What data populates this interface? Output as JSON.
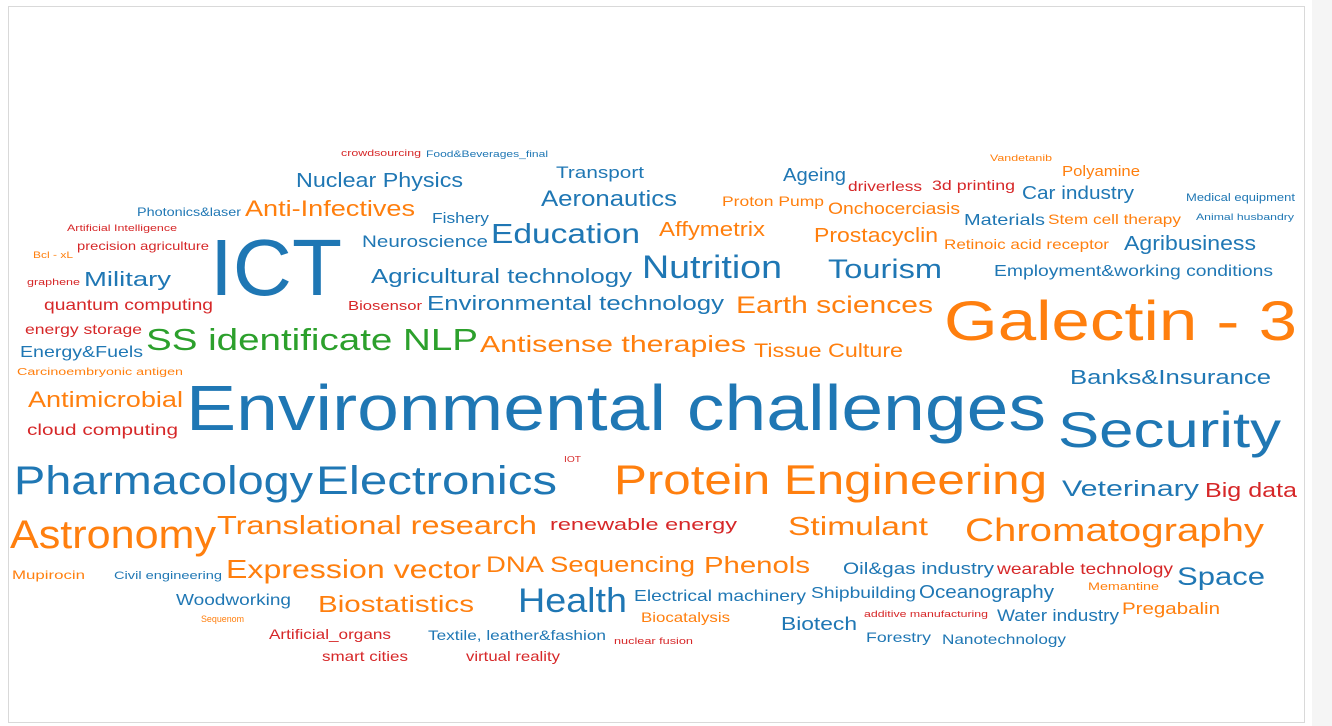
{
  "chart_data": {
    "type": "wordcloud",
    "words": [
      {
        "text": "crowdsourcing",
        "color": "#d62728"
      },
      {
        "text": "Food&Beverages_final",
        "color": "#1f77b4"
      },
      {
        "text": "Transport",
        "color": "#1f77b4"
      },
      {
        "text": "Nuclear Physics",
        "color": "#1f77b4"
      },
      {
        "text": "Ageing",
        "color": "#1f77b4"
      },
      {
        "text": "driverless",
        "color": "#d62728"
      },
      {
        "text": "3d printing",
        "color": "#d62728"
      },
      {
        "text": "Vandetanib",
        "color": "#ff7f0e"
      },
      {
        "text": "Polyamine",
        "color": "#ff7f0e"
      },
      {
        "text": "Car industry",
        "color": "#1f77b4"
      },
      {
        "text": "Aeronautics",
        "color": "#1f77b4"
      },
      {
        "text": "Proton Pump",
        "color": "#ff7f0e"
      },
      {
        "text": "Onchocerciasis",
        "color": "#ff7f0e"
      },
      {
        "text": "Medical equipment",
        "color": "#1f77b4"
      },
      {
        "text": "Photonics&laser",
        "color": "#1f77b4"
      },
      {
        "text": "Anti-Infectives",
        "color": "#ff7f0e"
      },
      {
        "text": "Fishery",
        "color": "#1f77b4"
      },
      {
        "text": "Materials",
        "color": "#1f77b4"
      },
      {
        "text": "Stem cell therapy",
        "color": "#ff7f0e"
      },
      {
        "text": "Animal husbandry",
        "color": "#1f77b4"
      },
      {
        "text": "Artificial Intelligence",
        "color": "#d62728"
      },
      {
        "text": "Education",
        "color": "#1f77b4"
      },
      {
        "text": "Affymetrix",
        "color": "#ff7f0e"
      },
      {
        "text": "Prostacyclin",
        "color": "#ff7f0e"
      },
      {
        "text": "Neuroscience",
        "color": "#1f77b4"
      },
      {
        "text": "precision agriculture",
        "color": "#d62728"
      },
      {
        "text": "Retinoic acid receptor",
        "color": "#ff7f0e"
      },
      {
        "text": "Agribusiness",
        "color": "#1f77b4"
      },
      {
        "text": "Bcl - xL",
        "color": "#ff7f0e"
      },
      {
        "text": "ICT",
        "color": "#1f77b4"
      },
      {
        "text": "Nutrition",
        "color": "#1f77b4"
      },
      {
        "text": "Tourism",
        "color": "#1f77b4"
      },
      {
        "text": "Agricultural technology",
        "color": "#1f77b4"
      },
      {
        "text": "Employment&working conditions",
        "color": "#1f77b4"
      },
      {
        "text": "graphene",
        "color": "#d62728"
      },
      {
        "text": "Military",
        "color": "#1f77b4"
      },
      {
        "text": "quantum computing",
        "color": "#d62728"
      },
      {
        "text": "Biosensor",
        "color": "#d62728"
      },
      {
        "text": "Environmental technology",
        "color": "#1f77b4"
      },
      {
        "text": "Earth sciences",
        "color": "#ff7f0e"
      },
      {
        "text": "Galectin - 3",
        "color": "#ff7f0e"
      },
      {
        "text": "energy storage",
        "color": "#d62728"
      },
      {
        "text": "SS identificate NLP",
        "color": "#2ca02c"
      },
      {
        "text": "Antisense therapies",
        "color": "#ff7f0e"
      },
      {
        "text": "Tissue Culture",
        "color": "#ff7f0e"
      },
      {
        "text": "Energy&Fuels",
        "color": "#1f77b4"
      },
      {
        "text": "Carcinoembryonic antigen",
        "color": "#ff7f0e"
      },
      {
        "text": "Banks&Insurance",
        "color": "#1f77b4"
      },
      {
        "text": "Antimicrobial",
        "color": "#ff7f0e"
      },
      {
        "text": "Environmental challenges",
        "color": "#1f77b4"
      },
      {
        "text": "Security",
        "color": "#1f77b4"
      },
      {
        "text": "cloud computing",
        "color": "#d62728"
      },
      {
        "text": "IOT",
        "color": "#d62728"
      },
      {
        "text": "Pharmacology",
        "color": "#1f77b4"
      },
      {
        "text": "Electronics",
        "color": "#1f77b4"
      },
      {
        "text": "Protein Engineering",
        "color": "#ff7f0e"
      },
      {
        "text": "Veterinary",
        "color": "#1f77b4"
      },
      {
        "text": "Big data",
        "color": "#d62728"
      },
      {
        "text": "Astronomy",
        "color": "#ff7f0e"
      },
      {
        "text": "Translational research",
        "color": "#ff7f0e"
      },
      {
        "text": "renewable energy",
        "color": "#d62728"
      },
      {
        "text": "Stimulant",
        "color": "#ff7f0e"
      },
      {
        "text": "Chromatography",
        "color": "#ff7f0e"
      },
      {
        "text": "Mupirocin",
        "color": "#ff7f0e"
      },
      {
        "text": "Civil engineering",
        "color": "#1f77b4"
      },
      {
        "text": "Expression vector",
        "color": "#ff7f0e"
      },
      {
        "text": "DNA Sequencing",
        "color": "#ff7f0e"
      },
      {
        "text": "Phenols",
        "color": "#ff7f0e"
      },
      {
        "text": "Oil&gas industry",
        "color": "#1f77b4"
      },
      {
        "text": "wearable technology",
        "color": "#d62728"
      },
      {
        "text": "Memantine",
        "color": "#ff7f0e"
      },
      {
        "text": "Space",
        "color": "#1f77b4"
      },
      {
        "text": "Woodworking",
        "color": "#1f77b4"
      },
      {
        "text": "Biostatistics",
        "color": "#ff7f0e"
      },
      {
        "text": "Health",
        "color": "#1f77b4"
      },
      {
        "text": "Electrical machinery",
        "color": "#1f77b4"
      },
      {
        "text": "Shipbuilding",
        "color": "#1f77b4"
      },
      {
        "text": "Oceanography",
        "color": "#1f77b4"
      },
      {
        "text": "Biocatalysis",
        "color": "#ff7f0e"
      },
      {
        "text": "Sequenom",
        "color": "#ff7f0e"
      },
      {
        "text": "additive manufacturing",
        "color": "#d62728"
      },
      {
        "text": "Water industry",
        "color": "#1f77b4"
      },
      {
        "text": "Pregabalin",
        "color": "#ff7f0e"
      },
      {
        "text": "Biotech",
        "color": "#1f77b4"
      },
      {
        "text": "Artificial_organs",
        "color": "#d62728"
      },
      {
        "text": "Textile, leather&fashion",
        "color": "#1f77b4"
      },
      {
        "text": "nuclear fusion",
        "color": "#d62728"
      },
      {
        "text": "Forestry",
        "color": "#1f77b4"
      },
      {
        "text": "Nanotechnology",
        "color": "#1f77b4"
      },
      {
        "text": "smart cities",
        "color": "#d62728"
      },
      {
        "text": "virtual reality",
        "color": "#d62728"
      }
    ]
  }
}
